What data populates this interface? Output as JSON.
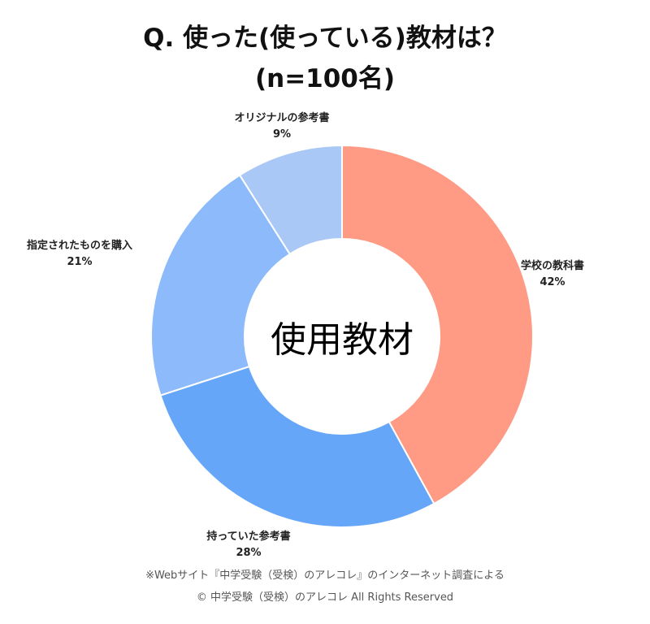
{
  "chart_data": {
    "type": "pie",
    "title_line1": "Q. 使った(使っている)教材は？",
    "title_line2": "(n=100名)",
    "center_label": "使用教材",
    "slices": [
      {
        "label": "学校の教科書",
        "value": 42,
        "value_label": "42%",
        "color": "#ff9a85"
      },
      {
        "label": "持っていた参考書",
        "value": 28,
        "value_label": "28%",
        "color": "#66a6f8"
      },
      {
        "label": "指定されたものを購入",
        "value": 21,
        "value_label": "21%",
        "color": "#8cbafa"
      },
      {
        "label": "オリジナルの参考書",
        "value": 9,
        "value_label": "9%",
        "color": "#a9c8f5"
      }
    ]
  },
  "footer": {
    "source": "※Webサイト『中学受験（受検）のアレコレ』のインターネット調査による",
    "copyright": "© 中学受験（受検）のアレコレ All Rights Reserved"
  }
}
